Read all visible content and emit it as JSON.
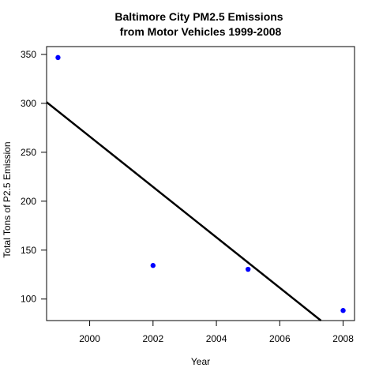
{
  "chart_data": {
    "type": "scatter",
    "title": "Baltimore City PM2.5 Emissions",
    "subtitle": "from Motor Vehicles 1999-2008",
    "xlabel": "Year",
    "ylabel": "Total Tons of P2.5 Emission",
    "xlim": [
      1998.64,
      2008.36
    ],
    "ylim": [
      78.0,
      358.0
    ],
    "x_ticks": [
      2000,
      2002,
      2004,
      2006,
      2008
    ],
    "y_ticks": [
      100,
      150,
      200,
      250,
      300,
      350
    ],
    "points": [
      {
        "x": 1999,
        "y": 346.8
      },
      {
        "x": 2002,
        "y": 134.3
      },
      {
        "x": 2005,
        "y": 130.4
      },
      {
        "x": 2008,
        "y": 88.3
      }
    ],
    "point_color": "#0000ff",
    "trend_line": {
      "x": [
        1998.64,
        2007.3
      ],
      "y": [
        301.2,
        78.0
      ],
      "color": "#000000"
    },
    "grid": false,
    "legend": "none"
  }
}
